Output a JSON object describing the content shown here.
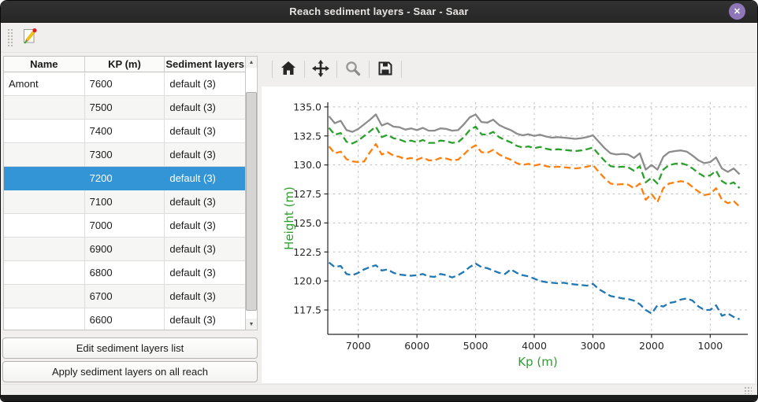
{
  "window": {
    "title": "Reach sediment layers - Saar - Saar"
  },
  "titlebar": {
    "close_glyph": "✕"
  },
  "table": {
    "headers": [
      "Name",
      "KP (m)",
      "Sediment layers"
    ],
    "selected_index": 4,
    "rows": [
      {
        "name": "Amont",
        "kp": "7600",
        "layers": "default (3)"
      },
      {
        "name": "",
        "kp": "7500",
        "layers": "default (3)"
      },
      {
        "name": "",
        "kp": "7400",
        "layers": "default (3)"
      },
      {
        "name": "",
        "kp": "7300",
        "layers": "default (3)"
      },
      {
        "name": "",
        "kp": "7200",
        "layers": "default (3)"
      },
      {
        "name": "",
        "kp": "7100",
        "layers": "default (3)"
      },
      {
        "name": "",
        "kp": "7000",
        "layers": "default (3)"
      },
      {
        "name": "",
        "kp": "6900",
        "layers": "default (3)"
      },
      {
        "name": "",
        "kp": "6800",
        "layers": "default (3)"
      },
      {
        "name": "",
        "kp": "6700",
        "layers": "default (3)"
      },
      {
        "name": "",
        "kp": "6600",
        "layers": "default (3)"
      }
    ]
  },
  "actions": {
    "edit_list": "Edit sediment layers list",
    "apply_all": "Apply sediment layers on all reach"
  },
  "plot_toolbar": {
    "icons": [
      "home-icon",
      "pan-icon",
      "zoom-icon",
      "save-icon"
    ]
  },
  "colors": {
    "selection": "#3394d6",
    "titlebar": "#2b2b2b",
    "close_button": "#8d77b8",
    "window_bg": "#f0efed",
    "figure_bg": "#ffffff",
    "grid": "#bdbdbd",
    "axis_label": "#2ca02c",
    "tick_label": "#262626"
  },
  "chart_data": {
    "type": "line",
    "title": "",
    "xlabel": "Kp (m)",
    "ylabel": "Height (m)",
    "xlim": [
      7520,
      360
    ],
    "ylim": [
      115.4,
      135.4
    ],
    "x_reversed": true,
    "grid": true,
    "legend": "none",
    "x_ticks": [
      7000,
      6000,
      5000,
      4000,
      3000,
      2000,
      1000
    ],
    "y_ticks": [
      135.0,
      132.5,
      130.0,
      127.5,
      125.0,
      122.5,
      120.0,
      117.5
    ],
    "x": [
      7500,
      7400,
      7300,
      7200,
      7100,
      7000,
      6900,
      6800,
      6700,
      6600,
      6500,
      6400,
      6300,
      6200,
      6100,
      6000,
      5900,
      5800,
      5700,
      5600,
      5500,
      5400,
      5300,
      5200,
      5100,
      5000,
      4900,
      4800,
      4700,
      4600,
      4500,
      4400,
      4300,
      4200,
      4100,
      4000,
      3900,
      3800,
      3700,
      3600,
      3500,
      3400,
      3300,
      3200,
      3100,
      3000,
      2900,
      2800,
      2700,
      2600,
      2500,
      2400,
      2300,
      2200,
      2100,
      2000,
      1900,
      1800,
      1700,
      1600,
      1500,
      1400,
      1300,
      1200,
      1100,
      1000,
      900,
      800,
      700,
      600,
      500
    ],
    "series": [
      {
        "name": "top-level-gray",
        "color": "#8c8c8c",
        "style": "solid",
        "values": [
          134.2,
          133.6,
          133.8,
          133.0,
          132.85,
          133.1,
          133.5,
          133.9,
          134.35,
          133.4,
          133.6,
          133.3,
          133.25,
          133.05,
          133.15,
          133.0,
          133.2,
          132.95,
          132.95,
          133.15,
          133.1,
          132.95,
          133.0,
          133.5,
          134.1,
          134.35,
          133.7,
          133.65,
          133.9,
          133.45,
          133.2,
          133.0,
          132.7,
          132.55,
          132.65,
          132.5,
          132.6,
          132.45,
          132.35,
          132.4,
          132.35,
          132.3,
          132.25,
          132.3,
          132.4,
          132.55,
          132.0,
          131.45,
          131.0,
          130.9,
          130.95,
          130.9,
          130.6,
          131.0,
          129.6,
          130.0,
          129.6,
          130.7,
          131.1,
          131.2,
          131.25,
          131.15,
          130.8,
          130.4,
          130.15,
          130.25,
          130.65,
          129.7,
          129.4,
          129.7,
          129.2
        ]
      },
      {
        "name": "layer-green",
        "color": "#2ca02c",
        "style": "dashed",
        "values": [
          133.2,
          132.6,
          132.75,
          132.0,
          131.85,
          132.1,
          132.5,
          132.9,
          133.3,
          132.4,
          132.6,
          132.3,
          132.2,
          132.0,
          132.1,
          131.95,
          132.15,
          131.9,
          131.9,
          132.1,
          132.05,
          131.9,
          131.95,
          132.4,
          133.0,
          133.3,
          132.65,
          132.6,
          132.85,
          132.4,
          132.15,
          131.95,
          131.65,
          131.5,
          131.6,
          131.45,
          131.55,
          131.4,
          131.3,
          131.35,
          131.3,
          131.25,
          131.2,
          131.25,
          131.35,
          131.5,
          130.9,
          130.35,
          129.9,
          129.8,
          129.85,
          129.8,
          129.5,
          129.9,
          128.5,
          128.9,
          128.4,
          129.6,
          130.0,
          130.1,
          130.15,
          130.0,
          129.7,
          129.3,
          129.0,
          129.1,
          129.5,
          128.6,
          128.3,
          128.5,
          128.0
        ]
      },
      {
        "name": "layer-orange",
        "color": "#ff7f0e",
        "style": "dashed",
        "values": [
          131.6,
          131.0,
          131.15,
          130.5,
          130.3,
          130.25,
          130.3,
          131.1,
          131.8,
          130.9,
          131.1,
          130.8,
          130.7,
          130.5,
          130.6,
          130.45,
          130.65,
          130.4,
          130.4,
          130.6,
          130.55,
          130.4,
          130.45,
          130.9,
          131.4,
          131.7,
          131.1,
          131.05,
          131.3,
          130.9,
          130.65,
          130.45,
          130.15,
          130.0,
          130.1,
          129.95,
          130.05,
          129.9,
          129.8,
          129.85,
          129.8,
          129.75,
          129.7,
          129.75,
          129.85,
          130.0,
          129.4,
          128.85,
          128.4,
          128.3,
          128.35,
          128.3,
          128.0,
          128.4,
          127.0,
          127.5,
          126.8,
          128.0,
          128.4,
          128.5,
          128.6,
          128.5,
          128.1,
          127.7,
          127.4,
          127.5,
          128.0,
          127.0,
          126.7,
          126.9,
          126.4
        ]
      },
      {
        "name": "bottom-blue",
        "color": "#1f77b4",
        "style": "dashed",
        "values": [
          121.6,
          121.2,
          121.3,
          120.6,
          120.5,
          120.7,
          121.0,
          121.2,
          121.35,
          120.9,
          121.0,
          120.7,
          120.55,
          120.5,
          120.45,
          120.5,
          120.6,
          120.4,
          120.35,
          120.6,
          120.5,
          120.3,
          120.5,
          120.8,
          121.2,
          121.5,
          121.2,
          121.1,
          120.9,
          120.7,
          120.6,
          121.0,
          120.7,
          120.5,
          120.4,
          120.2,
          120.0,
          119.9,
          119.85,
          119.8,
          119.85,
          119.75,
          119.7,
          119.65,
          119.6,
          119.75,
          119.3,
          119.0,
          118.7,
          118.6,
          118.5,
          118.45,
          118.3,
          118.0,
          117.5,
          117.2,
          117.9,
          117.8,
          118.1,
          118.2,
          118.4,
          118.5,
          118.3,
          117.8,
          117.5,
          117.5,
          117.9,
          117.0,
          117.2,
          116.9,
          116.7
        ]
      }
    ]
  }
}
